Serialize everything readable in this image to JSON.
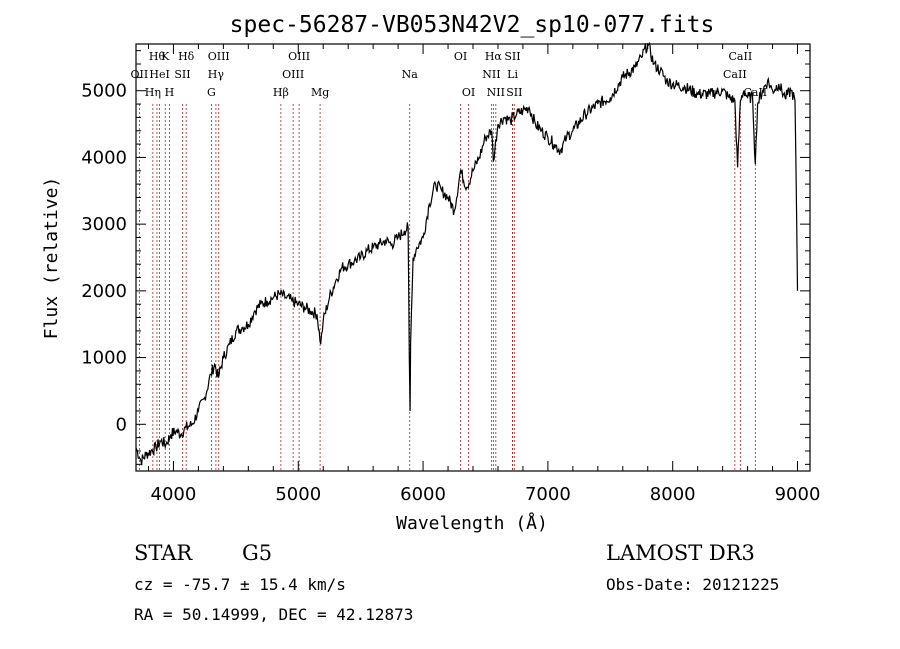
{
  "chart_data": {
    "type": "line",
    "title": "spec-56287-VB053N42V2_sp10-077.fits",
    "xlabel": "Wavelength (Å)",
    "ylabel": "Flux (relative)",
    "xlim": [
      3700,
      9100
    ],
    "ylim": [
      -700,
      5700
    ],
    "x_ticks": [
      4000,
      5000,
      6000,
      7000,
      8000,
      9000
    ],
    "y_ticks": [
      0,
      1000,
      2000,
      3000,
      4000,
      5000
    ],
    "grid": false,
    "line_color": "#000000",
    "marker_color": "#b22222",
    "series": [
      {
        "x": [
          3700,
          3740,
          3780,
          3820,
          3860,
          3900,
          3940,
          3980,
          4020,
          4060,
          4100,
          4150,
          4200,
          4250,
          4300,
          4330,
          4360,
          4400,
          4450,
          4500,
          4550,
          4600,
          4650,
          4700,
          4750,
          4800,
          4850,
          4900,
          4950,
          5000,
          5050,
          5100,
          5150,
          5180,
          5200,
          5250,
          5300,
          5350,
          5400,
          5450,
          5500,
          5550,
          5600,
          5650,
          5700,
          5750,
          5800,
          5850,
          5880,
          5890,
          5896,
          5900,
          5920,
          5950,
          6000,
          6050,
          6100,
          6150,
          6200,
          6250,
          6300,
          6350,
          6400,
          6450,
          6500,
          6550,
          6563,
          6600,
          6650,
          6700,
          6750,
          6800,
          6850,
          6900,
          6950,
          7000,
          7050,
          7100,
          7150,
          7200,
          7300,
          7400,
          7500,
          7600,
          7700,
          7750,
          7800,
          7850,
          7900,
          7950,
          8000,
          8100,
          8200,
          8300,
          8400,
          8450,
          8498,
          8520,
          8542,
          8570,
          8600,
          8640,
          8662,
          8680,
          8720,
          8760,
          8800,
          8850,
          8900,
          8950,
          8980,
          9000
        ],
        "y": [
          -350,
          -550,
          -450,
          -400,
          -350,
          -250,
          -300,
          -150,
          -100,
          -150,
          -50,
          0,
          200,
          400,
          750,
          900,
          700,
          1000,
          1200,
          1400,
          1450,
          1500,
          1700,
          1800,
          1850,
          1900,
          1950,
          1900,
          1850,
          1800,
          1750,
          1700,
          1650,
          1200,
          1550,
          1900,
          2150,
          2350,
          2400,
          2450,
          2500,
          2600,
          2650,
          2700,
          2750,
          2700,
          2800,
          2900,
          2950,
          1000,
          200,
          1200,
          2500,
          2650,
          2800,
          3300,
          3600,
          3500,
          3400,
          3200,
          3800,
          3550,
          3800,
          4000,
          4300,
          4400,
          3950,
          4500,
          4600,
          4550,
          4650,
          4700,
          4750,
          4500,
          4400,
          4300,
          4200,
          4100,
          4300,
          4400,
          4650,
          4800,
          4900,
          5200,
          5350,
          5500,
          5700,
          5400,
          5300,
          5150,
          5100,
          5050,
          4950,
          4950,
          5000,
          4900,
          4850,
          3850,
          4850,
          5000,
          4900,
          4900,
          3900,
          4800,
          5000,
          5150,
          5000,
          5100,
          4900,
          5000,
          4850,
          2000
        ]
      }
    ],
    "line_markers": [
      {
        "w": 3727,
        "labels": [
          "OII"
        ],
        "row": 1
      },
      {
        "w": 3835,
        "labels": [
          "Hη"
        ],
        "row": 2
      },
      {
        "w": 3868,
        "labels": [
          "Hθ"
        ],
        "row": 0
      },
      {
        "w": 3889,
        "labels": [
          "HeI"
        ],
        "row": 1
      },
      {
        "w": 3934,
        "labels": [
          "K"
        ],
        "row": 0
      },
      {
        "w": 3968,
        "labels": [
          "H"
        ],
        "row": 2
      },
      {
        "w": 4072,
        "labels": [
          "SII"
        ],
        "row": 1
      },
      {
        "w": 4102,
        "labels": [
          "Hδ"
        ],
        "row": 0
      },
      {
        "w": 4304,
        "labels": [
          "G"
        ],
        "row": 2
      },
      {
        "w": 4340,
        "labels": [
          "Hγ"
        ],
        "row": 1
      },
      {
        "w": 4363,
        "labels": [
          "OIII"
        ],
        "row": 0
      },
      {
        "w": 4861,
        "labels": [
          "Hβ"
        ],
        "row": 2
      },
      {
        "w": 4959,
        "labels": [
          "OIII"
        ],
        "row": 1
      },
      {
        "w": 5007,
        "labels": [
          "OIII"
        ],
        "row": 0
      },
      {
        "w": 5175,
        "labels": [
          "Mg"
        ],
        "row": 2
      },
      {
        "w": 5893,
        "labels": [
          "Na"
        ],
        "row": 1
      },
      {
        "w": 6300,
        "labels": [
          "OI"
        ],
        "row": 0
      },
      {
        "w": 6364,
        "labels": [
          "OI"
        ],
        "row": 2
      },
      {
        "w": 6548,
        "labels": [
          "NII"
        ],
        "row": 1
      },
      {
        "w": 6563,
        "labels": [
          "Hα"
        ],
        "row": 0
      },
      {
        "w": 6583,
        "labels": [
          "NII"
        ],
        "row": 2
      },
      {
        "w": 6716,
        "labels": [
          "SII"
        ],
        "row": 0
      },
      {
        "w": 6717,
        "labels": [
          "Li"
        ],
        "row": 1
      },
      {
        "w": 6731,
        "labels": [
          "SII"
        ],
        "row": 2
      },
      {
        "w": 8498,
        "labels": [
          "CaII"
        ],
        "row": 1
      },
      {
        "w": 8542,
        "labels": [
          "CaII"
        ],
        "row": 0
      },
      {
        "w": 8662,
        "labels": [
          "CaII"
        ],
        "row": 2
      }
    ]
  },
  "info": {
    "object_class": "STAR",
    "subclass": "G5",
    "survey": "LAMOST DR3",
    "cz": "cz = -75.7 ± 15.4 km/s",
    "obs_date": "Obs-Date: 20121225",
    "coords": "RA =  50.14999, DEC =  42.12873"
  }
}
